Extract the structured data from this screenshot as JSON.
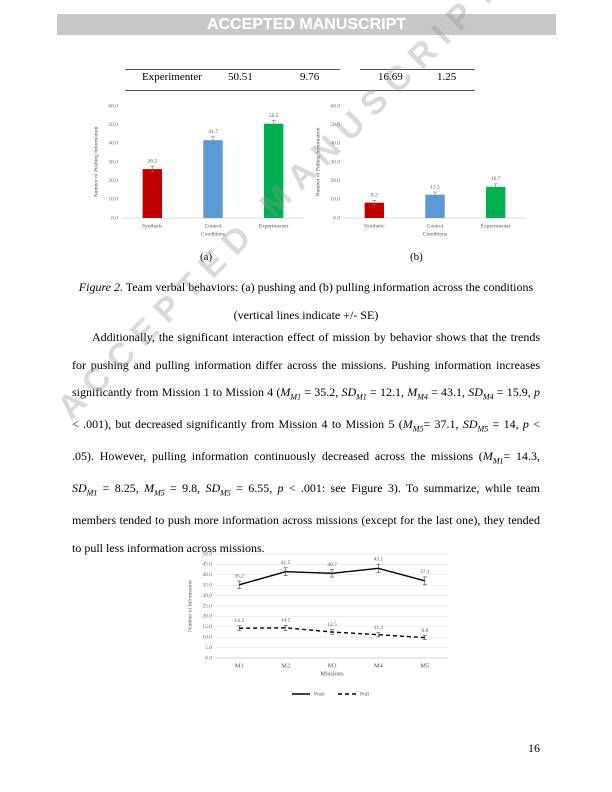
{
  "header": "ACCEPTED MANUSCRIPT",
  "watermark": "ACCEPTED MANUSCRIPT",
  "table": {
    "rows": [
      [
        "Experimenter",
        "50.51",
        "9.76",
        "16.69",
        "1.25"
      ]
    ]
  },
  "chart_data": [
    {
      "type": "bar",
      "panel": "(a)",
      "y_label": "Number of Pushing Information",
      "x_label": "Conditions",
      "categories": [
        "Synthetic",
        "Control",
        "Experimenter"
      ],
      "values": [
        26.2,
        41.7,
        50.5
      ],
      "errors": [
        1.6,
        1.8,
        1.7
      ],
      "colors": [
        "#c00000",
        "#5b9bd5",
        "#00b050"
      ],
      "ylim": [
        0,
        60
      ],
      "yticks": [
        {
          "value": 0,
          "label": "0.0"
        },
        {
          "value": 10,
          "label": "10.0"
        },
        {
          "value": 20,
          "label": "20.0"
        },
        {
          "value": 30,
          "label": "30.0"
        },
        {
          "value": 40,
          "label": "40.0"
        },
        {
          "value": 50,
          "label": "50.0"
        },
        {
          "value": 60,
          "label": "60.0"
        }
      ]
    },
    {
      "type": "bar",
      "panel": "(b)",
      "y_label": "Number of Pulling Information",
      "x_label": "Conditions",
      "categories": [
        "Synthetic",
        "Control",
        "Experimenter"
      ],
      "values": [
        8.2,
        12.5,
        16.7
      ],
      "errors": [
        1.2,
        1.4,
        1.6
      ],
      "colors": [
        "#c00000",
        "#5b9bd5",
        "#00b050"
      ],
      "ylim": [
        0,
        60
      ],
      "yticks": [
        {
          "value": 0,
          "label": "0.0"
        },
        {
          "value": 10,
          "label": "10.0"
        },
        {
          "value": 20,
          "label": "20.0"
        },
        {
          "value": 30,
          "label": "30.0"
        },
        {
          "value": 40,
          "label": "40.0"
        },
        {
          "value": 50,
          "label": "50.0"
        },
        {
          "value": 60,
          "label": "60.0"
        }
      ]
    },
    {
      "type": "line",
      "y_label": "Number of Information",
      "x_label": "Missions",
      "categories": [
        "M1",
        "M2",
        "M3",
        "M4",
        "M5"
      ],
      "series": [
        {
          "name": "Push",
          "color": "#000000",
          "dash": false,
          "values": [
            35.2,
            41.5,
            40.7,
            43.1,
            37.1
          ],
          "errors": [
            1.8,
            1.9,
            1.8,
            2.0,
            1.9
          ]
        },
        {
          "name": "Pull",
          "color": "#000000",
          "dash": true,
          "values": [
            14.3,
            14.5,
            12.5,
            11.2,
            9.8
          ],
          "errors": [
            1.2,
            1.2,
            1.1,
            1.0,
            1.0
          ]
        }
      ],
      "ylim": [
        0,
        50
      ],
      "grid": true,
      "yticks": [
        {
          "value": 0,
          "label": "0.0"
        },
        {
          "value": 5,
          "label": "5.0"
        },
        {
          "value": 10,
          "label": "10.0"
        },
        {
          "value": 15,
          "label": "15.0"
        },
        {
          "value": 20,
          "label": "20.0"
        },
        {
          "value": 25,
          "label": "25.0"
        },
        {
          "value": 30,
          "label": "30.0"
        },
        {
          "value": 35,
          "label": "35.0"
        },
        {
          "value": 40,
          "label": "40.0"
        },
        {
          "value": 45,
          "label": "45.0"
        },
        {
          "value": 50,
          "label": "50.0"
        }
      ]
    }
  ],
  "caption": [
    {
      "i": "Figure 2"
    },
    ". Team verbal behaviors: (a) pushing and (b) pulling information across the conditions (vertical lines indicate +/- SE)"
  ],
  "paragraph": [
    "Additionally, the significant interaction effect of mission by behavior shows that the trends for pushing and pulling information differ across the missions. Pushing information increases significantly from Mission 1 to Mission 4 (",
    {
      "i": "M"
    },
    {
      "sub": "M1"
    },
    " = 35.2, ",
    {
      "i": "SD"
    },
    {
      "sub": "M1"
    },
    " = 12.1, ",
    {
      "i": "M"
    },
    {
      "sub": "M4"
    },
    " = 43.1, ",
    {
      "i": "SD"
    },
    {
      "sub": "M4"
    },
    " = 15.9, ",
    {
      "i": "p"
    },
    " < .001), but decreased significantly from Mission 4 to Mission 5 (",
    {
      "i": "M"
    },
    {
      "sub": "M5"
    },
    "= 37.1, ",
    {
      "i": "SD"
    },
    {
      "sub": "M5"
    },
    " = 14, ",
    {
      "i": "p"
    },
    " < .05). However, pulling information continuously decreased across the missions (",
    {
      "i": "M"
    },
    {
      "sub": "M1"
    },
    "= 14.3, ",
    {
      "i": "SD"
    },
    {
      "sub": "M1"
    },
    " = 8.25, ",
    {
      "i": "M"
    },
    {
      "sub": "M5"
    },
    " = 9.8, ",
    {
      "i": "SD"
    },
    {
      "sub": "M5"
    },
    " = 6.55, ",
    {
      "i": "p"
    },
    " < .001: see Figure 3). To summarize, while team members tended to push more information across missions (except for the last one), they tended to pull less information across missions."
  ],
  "page_number": "16"
}
